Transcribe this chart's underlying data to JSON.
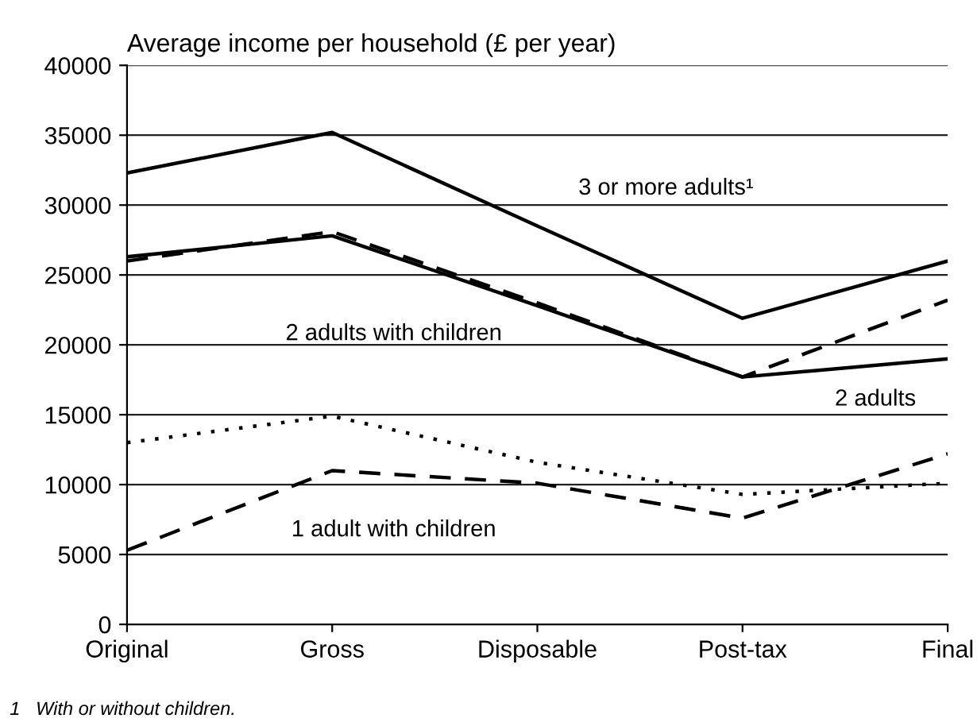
{
  "chart_data": {
    "type": "line",
    "ylabel": "Average income per household (£ per year)",
    "categories": [
      "Original",
      "Gross",
      "Disposable",
      "Post-tax",
      "Final"
    ],
    "series": [
      {
        "name": "3 or more adults¹",
        "color": "#000000",
        "line_style": "solid",
        "values": [
          32300,
          35200,
          28500,
          21900,
          26000
        ]
      },
      {
        "name": "2 adults with children",
        "color": "#000000",
        "line_style": "dashed",
        "values": [
          26000,
          28100,
          23000,
          17700,
          23200
        ]
      },
      {
        "name": "2 adults",
        "color": "#000000",
        "line_style": "solid",
        "values": [
          26300,
          27800,
          22800,
          17700,
          19000
        ]
      },
      {
        "color": "#000000",
        "line_style": "dotted",
        "values": [
          13000,
          14900,
          11600,
          9300,
          10100
        ]
      },
      {
        "name": "1 adult with children",
        "color": "#000000",
        "line_style": "dashed",
        "values": [
          5300,
          11000,
          10100,
          7600,
          12200
        ]
      }
    ],
    "ylim": [
      0,
      40000
    ],
    "yticks": [
      0,
      5000,
      10000,
      15000,
      20000,
      25000,
      30000,
      35000,
      40000
    ],
    "grid": "y",
    "legend": false,
    "marker": "none",
    "annotations": [
      "1   With or without children."
    ]
  }
}
